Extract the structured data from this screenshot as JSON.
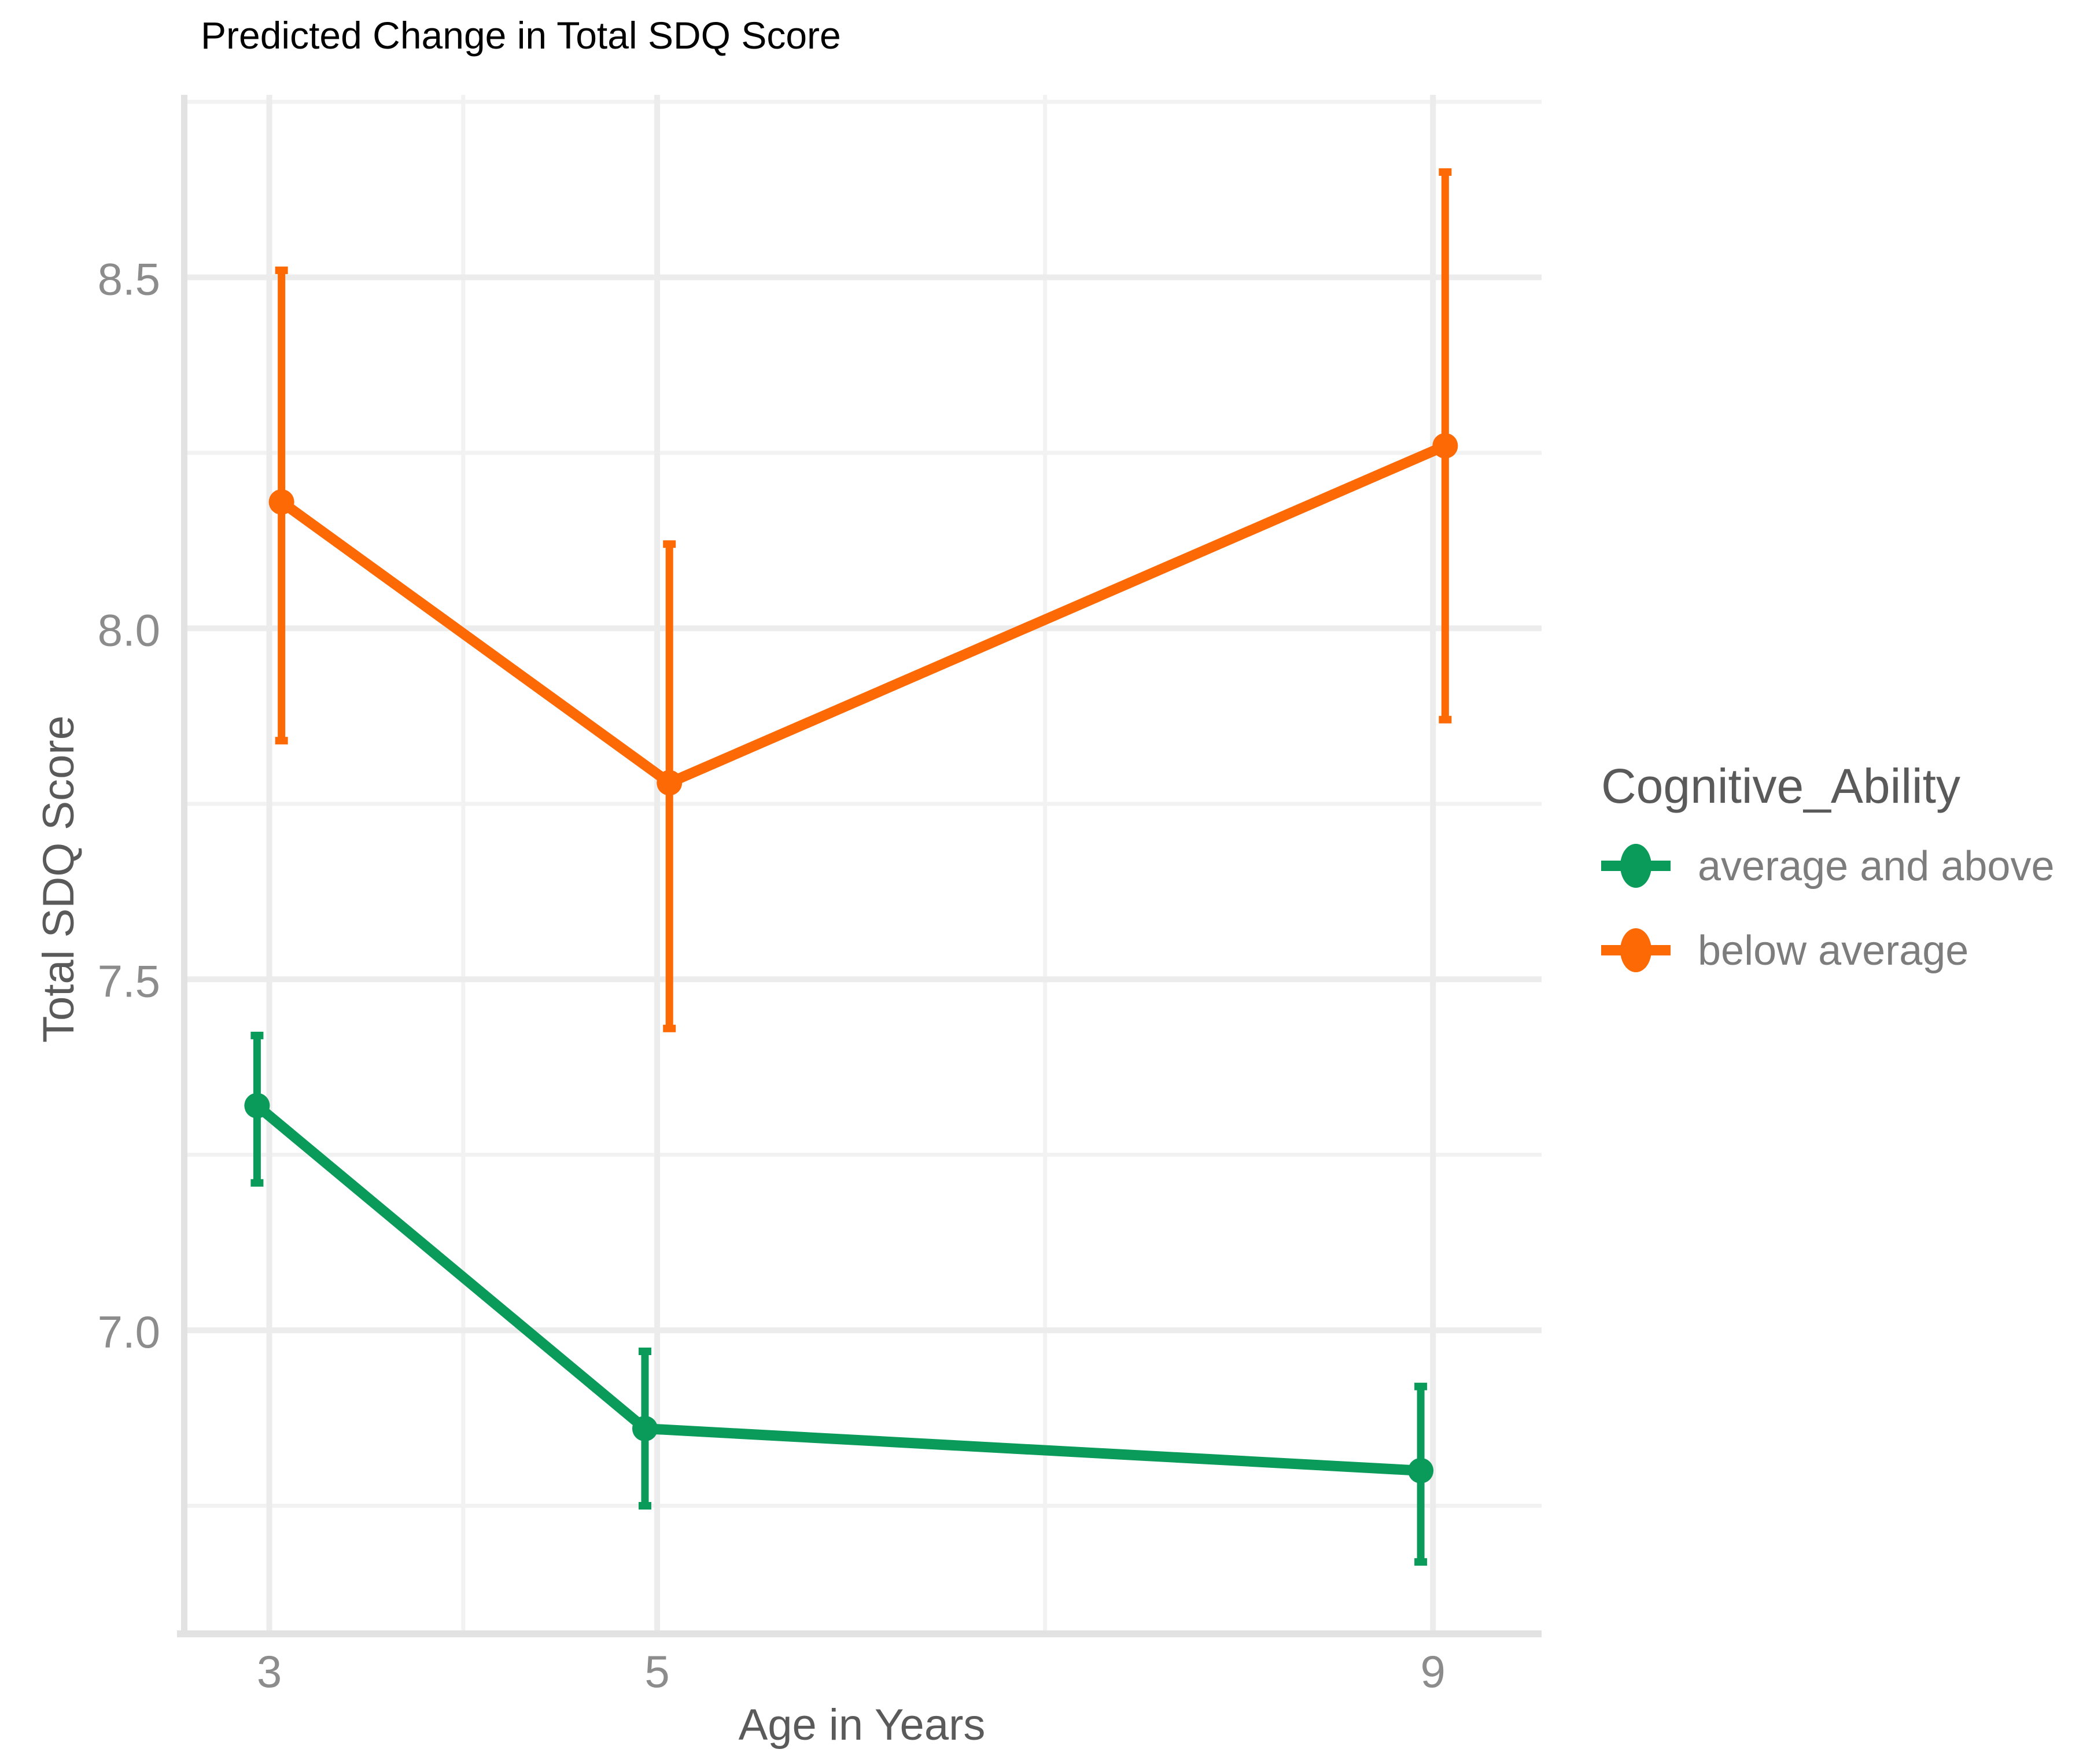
{
  "title": "Predicted Change in Total SDQ Score",
  "legend": {
    "title": "Cognitive_Ability",
    "items": [
      {
        "label": "average and above",
        "color": "#0a9b5a"
      },
      {
        "label": "below average",
        "color": "#fc6905"
      }
    ]
  },
  "colors": {
    "green_series": "#0a9b5a",
    "orange_series": "#fc6905",
    "grid_major": "#ececec",
    "grid_minor": "#f2f2f2",
    "axis_strip": "#e2e2e2",
    "tick_text": "#8c8c8c",
    "axis_title_text": "#5a5a5a",
    "legend_title_text": "#5a5a5a",
    "legend_label_text": "#7d7d7d",
    "title_text": "#000000"
  },
  "chart_data": {
    "type": "line",
    "title": "Predicted Change in Total SDQ Score",
    "xlabel": "Age in Years",
    "ylabel": "Total SDQ Score",
    "legend_title": "Cognitive_Ability",
    "legend_position": "right",
    "grid": true,
    "xlim": [
      2.56,
      9.56
    ],
    "ylim": [
      6.57,
      8.76
    ],
    "x_major_ticks": [
      3,
      5,
      9
    ],
    "x_tick_labels": [
      "3",
      "5",
      "9"
    ],
    "x_minor_gridlines": [
      4,
      7
    ],
    "y_major_ticks": [
      7.0,
      7.5,
      8.0,
      8.5
    ],
    "y_tick_labels": [
      "7.0",
      "7.5",
      "8.0",
      "8.5"
    ],
    "y_minor_gridlines": [
      6.75,
      7.25,
      7.75,
      8.25,
      8.75
    ],
    "dodge_x_units": 0.063,
    "series": [
      {
        "name": "average and above",
        "color": "#0a9b5a",
        "x": [
          3,
          5,
          9
        ],
        "y": [
          7.32,
          6.86,
          6.8
        ],
        "ymin": [
          7.21,
          6.75,
          6.67
        ],
        "ymax": [
          7.42,
          6.97,
          6.92
        ],
        "dodge_direction": -1
      },
      {
        "name": "below average",
        "color": "#fc6905",
        "x": [
          3,
          5,
          9
        ],
        "y": [
          8.18,
          7.78,
          8.26
        ],
        "ymin": [
          7.84,
          7.43,
          7.87
        ],
        "ymax": [
          8.51,
          8.12,
          8.65
        ],
        "dodge_direction": 1
      }
    ]
  }
}
